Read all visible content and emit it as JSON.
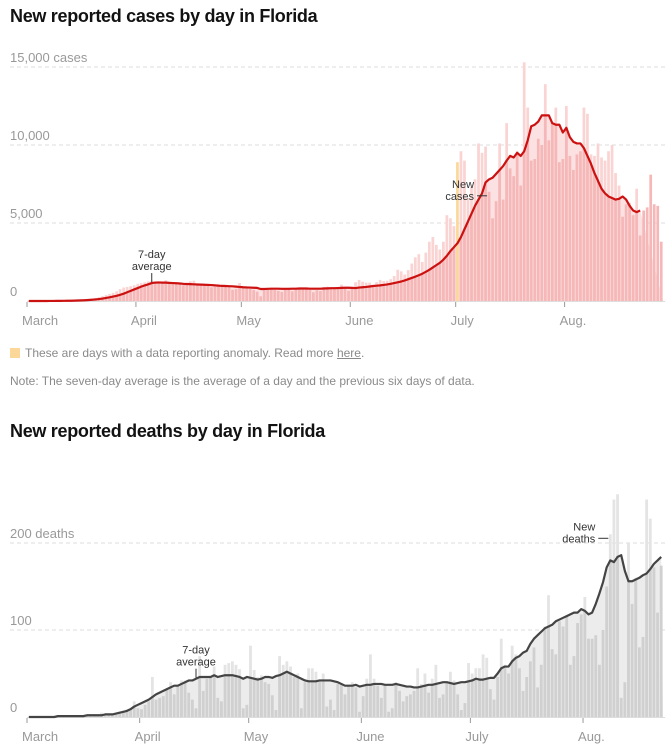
{
  "notes": {
    "anomaly_text": "These are days with a data reporting anomaly. Read more ",
    "anomaly_link": "here",
    "anomaly_end": ".",
    "seven_day": "Note: The seven-day average is the average of a day and the previous six days of data."
  },
  "colors": {
    "cases_bar": "#f5b7b7",
    "cases_bar_light": "#fad3d3",
    "cases_line": "#cc1111",
    "cases_area": "#fbe1e1",
    "anomaly": "#fbd89a",
    "deaths_bar": "#d0d0d0",
    "deaths_bar_light": "#e4e4e4",
    "deaths_line": "#444444",
    "deaths_area": "#ececec",
    "grid": "#dddddd",
    "tick_text": "#999999"
  },
  "chart_data": [
    {
      "type": "bar",
      "title": "New reported cases by day in Florida",
      "ylabel_unit": "cases",
      "x_start": "Mar 1",
      "x_end": "Aug 16",
      "ylim": [
        0,
        15000
      ],
      "yticks": [
        {
          "value": 0,
          "label": "0"
        },
        {
          "value": 5000,
          "label": "5,000"
        },
        {
          "value": 10000,
          "label": "10,000"
        },
        {
          "value": 15000,
          "label": "15,000 cases"
        }
      ],
      "xticks": [
        {
          "day": 0,
          "label": "March"
        },
        {
          "day": 31,
          "label": "April"
        },
        {
          "day": 61,
          "label": "May"
        },
        {
          "day": 92,
          "label": "June"
        },
        {
          "day": 122,
          "label": "July"
        },
        {
          "day": 153,
          "label": "Aug."
        }
      ],
      "anomaly_days": [
        122
      ],
      "annotations": [
        {
          "text": [
            "7-day",
            "average"
          ],
          "target": "line",
          "day": 35
        },
        {
          "text": [
            "New",
            "cases"
          ],
          "target": "bar",
          "day": 131
        }
      ],
      "series": [
        {
          "name": "New cases",
          "values": [
            0,
            0,
            2,
            1,
            2,
            3,
            6,
            8,
            11,
            15,
            18,
            26,
            35,
            48,
            58,
            72,
            95,
            120,
            155,
            195,
            245,
            310,
            380,
            450,
            520,
            620,
            760,
            860,
            900,
            950,
            1010,
            1100,
            1150,
            1200,
            1260,
            1300,
            1250,
            1180,
            1210,
            1330,
            1240,
            1100,
            1150,
            1130,
            1010,
            1070,
            1260,
            1300,
            1050,
            990,
            1080,
            1120,
            880,
            900,
            1100,
            1000,
            980,
            950,
            720,
            760,
            1150,
            900,
            850,
            780,
            700,
            600,
            300,
            680,
            780,
            800,
            700,
            650,
            580,
            820,
            850,
            620,
            820,
            840,
            850,
            740,
            700,
            560,
            690,
            640,
            900,
            920,
            780,
            840,
            850,
            1050,
            820,
            660,
            780,
            1200,
            1350,
            1240,
            1180,
            1180,
            1020,
            1210,
            1350,
            1280,
            1300,
            1400,
            1600,
            2000,
            1900,
            1700,
            1980,
            2400,
            2800,
            3000,
            2500,
            3100,
            3800,
            4100,
            3600,
            3300,
            3800,
            5500,
            5300,
            4800,
            8900,
            9600,
            9000,
            6600,
            7300,
            7800,
            10100,
            9500,
            9900,
            7000,
            5300,
            6400,
            10100,
            6500,
            11400,
            8500,
            8000,
            9600,
            7400,
            15300,
            12400,
            9000,
            9100,
            10400,
            10000,
            13900,
            10300,
            11400,
            12400,
            8900,
            9100,
            12500,
            9300,
            8400,
            9400,
            9600,
            12400,
            12000,
            9400,
            9300,
            10100,
            9200,
            9000,
            9600,
            10000,
            8200,
            7400,
            5400,
            6200,
            6300,
            5500,
            7200,
            4200,
            5800,
            6000,
            8100,
            6200,
            6100,
            3800
          ]
        },
        {
          "name": "7-day average",
          "values": [
            0,
            0,
            0,
            1,
            1,
            2,
            3,
            4,
            6,
            8,
            11,
            14,
            18,
            24,
            30,
            40,
            50,
            63,
            80,
            100,
            125,
            155,
            195,
            235,
            285,
            335,
            400,
            470,
            560,
            650,
            740,
            830,
            920,
            1000,
            1070,
            1150,
            1180,
            1190,
            1180,
            1180,
            1160,
            1150,
            1140,
            1120,
            1100,
            1090,
            1080,
            1070,
            1060,
            1050,
            1040,
            1030,
            1020,
            1000,
            980,
            970,
            960,
            950,
            940,
            920,
            900,
            880,
            870,
            860,
            850,
            840,
            770,
            770,
            780,
            790,
            790,
            790,
            780,
            780,
            780,
            790,
            790,
            800,
            800,
            800,
            790,
            790,
            790,
            790,
            800,
            810,
            820,
            820,
            830,
            840,
            850,
            850,
            840,
            830,
            860,
            880,
            900,
            930,
            960,
            980,
            1000,
            1030,
            1060,
            1100,
            1150,
            1200,
            1250,
            1320,
            1400,
            1480,
            1560,
            1650,
            1750,
            1870,
            2000,
            2150,
            2300,
            2450,
            2650,
            2900,
            3200,
            3450,
            3700,
            4100,
            4600,
            5100,
            5600,
            6100,
            6500,
            6900,
            7600,
            7800,
            7900,
            8150,
            8400,
            8650,
            9000,
            9300,
            9200,
            9500,
            9300,
            9600,
            10300,
            11200,
            11300,
            11500,
            11900,
            11900,
            11900,
            11400,
            11300,
            11300,
            10800,
            11100,
            10500,
            10200,
            10100,
            10100,
            9800,
            9300,
            8800,
            8200,
            7700,
            7200,
            6900,
            6700,
            6600,
            6500,
            6550,
            6700,
            6500,
            6100,
            5800,
            5700,
            5800
          ]
        }
      ]
    },
    {
      "type": "bar",
      "title": "New reported deaths by day in Florida",
      "ylabel_unit": "deaths",
      "x_start": "Mar 1",
      "x_end": "Aug 16",
      "ylim": [
        0,
        300
      ],
      "yticks": [
        {
          "value": 0,
          "label": "0"
        },
        {
          "value": 100,
          "label": "100"
        },
        {
          "value": 200,
          "label": "200 deaths"
        }
      ],
      "xticks": [
        {
          "day": 0,
          "label": "March"
        },
        {
          "day": 31,
          "label": "April"
        },
        {
          "day": 61,
          "label": "May"
        },
        {
          "day": 92,
          "label": "June"
        },
        {
          "day": 122,
          "label": "July"
        },
        {
          "day": 153,
          "label": "Aug."
        }
      ],
      "annotations": [
        {
          "text": [
            "7-day",
            "average"
          ],
          "target": "line",
          "day": 46
        },
        {
          "text": [
            "New",
            "deaths"
          ],
          "target": "bar",
          "day": 160
        }
      ],
      "series": [
        {
          "name": "New deaths",
          "values": [
            0,
            0,
            0,
            0,
            0,
            1,
            0,
            1,
            1,
            0,
            1,
            0,
            1,
            1,
            2,
            1,
            2,
            2,
            3,
            1,
            5,
            3,
            2,
            4,
            5,
            6,
            7,
            9,
            8,
            18,
            10,
            9,
            14,
            18,
            46,
            20,
            22,
            24,
            32,
            40,
            26,
            36,
            42,
            42,
            28,
            20,
            10,
            70,
            30,
            44,
            46,
            58,
            22,
            18,
            60,
            62,
            64,
            60,
            55,
            10,
            14,
            82,
            54,
            46,
            48,
            40,
            38,
            25,
            8,
            70,
            60,
            64,
            58,
            46,
            50,
            10,
            40,
            56,
            56,
            52,
            42,
            50,
            12,
            20,
            8,
            38,
            38,
            26,
            36,
            40,
            34,
            6,
            24,
            44,
            72,
            44,
            36,
            22,
            36,
            6,
            10,
            40,
            30,
            18,
            24,
            26,
            30,
            56,
            38,
            50,
            28,
            44,
            60,
            22,
            26,
            40,
            52,
            42,
            26,
            8,
            16,
            62,
            50,
            56,
            56,
            72,
            68,
            32,
            20,
            46,
            90,
            60,
            50,
            82,
            72,
            56,
            30,
            46,
            64,
            80,
            34,
            60,
            104,
            140,
            78,
            72,
            110,
            104,
            116,
            60,
            70,
            108,
            118,
            138,
            90,
            90,
            94,
            60,
            100,
            150,
            210,
            250,
            256,
            22,
            40,
            200,
            130,
            160,
            80,
            92,
            250,
            228,
            172,
            120,
            174
          ]
        },
        {
          "name": "7-day average",
          "values": [
            0,
            0,
            0,
            0,
            0,
            0,
            0,
            0,
            1,
            1,
            1,
            1,
            1,
            1,
            1,
            1,
            2,
            2,
            2,
            2,
            2,
            3,
            3,
            3,
            4,
            5,
            6,
            7,
            9,
            12,
            14,
            16,
            18,
            20,
            23,
            26,
            28,
            30,
            32,
            34,
            36,
            36,
            38,
            40,
            42,
            42,
            44,
            46,
            46,
            46,
            46,
            48,
            46,
            47,
            48,
            48,
            48,
            47,
            46,
            44,
            46,
            45,
            44,
            43,
            44,
            46,
            46,
            45,
            47,
            48,
            50,
            52,
            50,
            48,
            46,
            44,
            42,
            41,
            41,
            41,
            42,
            42,
            42,
            42,
            41,
            40,
            38,
            36,
            36,
            36,
            37,
            35,
            36,
            37,
            37,
            38,
            38,
            38,
            37,
            37,
            37,
            38,
            37,
            36,
            35,
            35,
            34,
            34,
            35,
            36,
            37,
            37,
            38,
            39,
            40,
            40,
            39,
            38,
            39,
            40,
            40,
            41,
            42,
            44,
            43,
            43,
            44,
            45,
            45,
            50,
            56,
            58,
            58,
            64,
            68,
            70,
            74,
            76,
            84,
            90,
            94,
            98,
            102,
            104,
            106,
            110,
            112,
            114,
            116,
            118,
            120,
            120,
            124,
            122,
            118,
            120,
            130,
            142,
            155,
            172,
            180,
            178,
            184,
            186,
            168,
            156,
            156,
            158,
            160,
            163,
            165,
            170,
            176,
            180,
            184
          ]
        }
      ]
    }
  ]
}
